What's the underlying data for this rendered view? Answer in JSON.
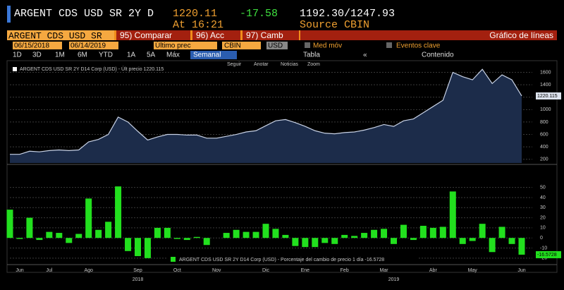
{
  "header": {
    "title": "ARGENT CDS USD SR 2Y D",
    "last": "1220.11",
    "change": "-17.58",
    "range": "1192.30/1247.93",
    "time": "At 16:21",
    "source": "Source CBIN"
  },
  "menu": {
    "security": "ARGENT CDS USD SR",
    "items": [
      "95) Comparar",
      "96) Acc",
      "97) Camb"
    ],
    "chart_type": "Gráfico de líneas"
  },
  "settings": {
    "start": "06/15/2018",
    "end": "06/14/2019",
    "field": "Último prec",
    "source": "CBIN",
    "currency": "USD",
    "moving_avg": "Med móv",
    "events": "Eventos clave"
  },
  "periods": [
    "1D",
    "3D",
    "1M",
    "6M",
    "YTD",
    "1A",
    "5A",
    "Máx"
  ],
  "frequency": "Semanal",
  "table": "Tabla",
  "content": "Contenido",
  "tools": [
    "Seguir",
    "Anotar",
    "Noticias",
    "Zoom"
  ],
  "chart_data": [
    {
      "type": "area",
      "legend": "ARGENT CDS USD SR 2Y D14 Corp (USD) - Últ precio 1220.115",
      "values": [
        280,
        280,
        330,
        320,
        340,
        350,
        340,
        350,
        480,
        520,
        600,
        880,
        800,
        650,
        510,
        560,
        600,
        600,
        590,
        590,
        540,
        540,
        570,
        600,
        640,
        660,
        740,
        820,
        840,
        790,
        730,
        660,
        620,
        610,
        630,
        640,
        670,
        710,
        760,
        730,
        820,
        850,
        950,
        1050,
        1150,
        1600,
        1530,
        1480,
        1650,
        1420,
        1560,
        1480,
        1220.115
      ],
      "last_value_label": "1220.115",
      "color": "#1c2c4a",
      "line_color": "#c8d2e6",
      "ylim": [
        140,
        1720
      ],
      "yticks": [
        200,
        400,
        600,
        800,
        1000,
        1200,
        1400,
        1600
      ],
      "grid": true
    },
    {
      "type": "bar",
      "legend": "ARGENT CDS USD SR 2Y D14 Corp (USD) - Porcentaje del cambio de precio 1 día -16.5728",
      "categories": [
        null,
        "Jun",
        null,
        null,
        "Jul",
        null,
        null,
        null,
        "Ago",
        null,
        null,
        null,
        null,
        "Sep",
        null,
        null,
        null,
        "Oct",
        null,
        null,
        null,
        "Nov",
        null,
        null,
        null,
        null,
        "Dic",
        null,
        null,
        null,
        "Ene",
        null,
        null,
        null,
        "Feb",
        null,
        null,
        null,
        "Mar",
        null,
        null,
        null,
        null,
        "Abr",
        null,
        null,
        null,
        "May",
        null,
        null,
        null,
        null,
        "Jun"
      ],
      "years": [
        null,
        null,
        null,
        null,
        null,
        null,
        null,
        null,
        null,
        null,
        null,
        null,
        null,
        "2018",
        null,
        null,
        null,
        null,
        null,
        null,
        null,
        null,
        null,
        null,
        null,
        null,
        null,
        null,
        null,
        null,
        null,
        null,
        null,
        null,
        null,
        null,
        null,
        null,
        null,
        "2019",
        null,
        null,
        null,
        null,
        null,
        null,
        null,
        null,
        null,
        null,
        null,
        null,
        null
      ],
      "values": [
        28,
        -1,
        20,
        -2,
        6,
        5,
        -5,
        4,
        39,
        8,
        16,
        51,
        -13,
        -18,
        -20,
        10,
        10,
        -1,
        -2,
        1,
        -7,
        0,
        5,
        8,
        6,
        6,
        14,
        9,
        3,
        -8,
        -9,
        -9,
        -5,
        -6,
        3,
        2,
        5,
        8,
        9,
        -6,
        13,
        -2,
        12,
        10,
        11,
        46,
        -6,
        -3,
        14,
        -14,
        11,
        -6,
        -16.5728
      ],
      "last_value_label": "-16.5728",
      "color": "#22e01e",
      "ylim": [
        -25,
        70
      ],
      "yticks": [
        -20,
        -10,
        0,
        10,
        20,
        30,
        40,
        50
      ],
      "grid": true
    }
  ]
}
